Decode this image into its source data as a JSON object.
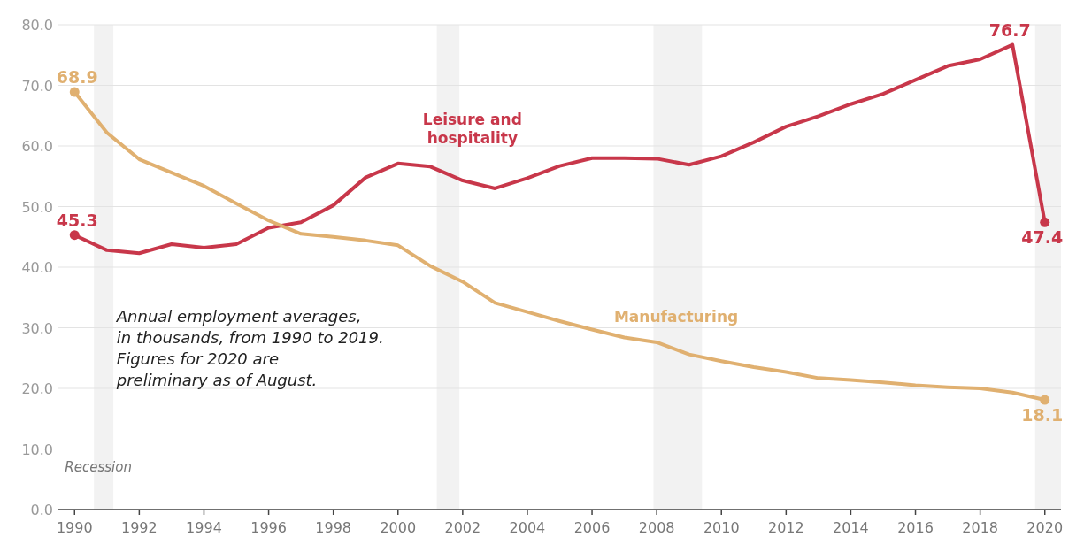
{
  "chart_data": {
    "type": "line",
    "x": [
      1990,
      1991,
      1992,
      1993,
      1994,
      1995,
      1996,
      1997,
      1998,
      1999,
      2000,
      2001,
      2002,
      2003,
      2004,
      2005,
      2006,
      2007,
      2008,
      2009,
      2010,
      2011,
      2012,
      2013,
      2014,
      2015,
      2016,
      2017,
      2018,
      2019,
      2020
    ],
    "series": [
      {
        "name": "Leisure and hospitality",
        "color": "#c8374a",
        "values": [
          45.3,
          42.8,
          42.3,
          43.8,
          43.2,
          43.8,
          46.5,
          47.4,
          50.2,
          54.8,
          57.1,
          56.6,
          54.3,
          53.0,
          54.7,
          56.7,
          58.0,
          58.0,
          57.9,
          56.9,
          58.3,
          60.6,
          63.2,
          64.9,
          66.9,
          68.6,
          70.9,
          73.2,
          74.3,
          76.7,
          47.4
        ],
        "value_labels": [
          "45.3",
          null,
          null,
          null,
          null,
          null,
          null,
          null,
          null,
          null,
          null,
          null,
          null,
          null,
          null,
          null,
          null,
          null,
          null,
          null,
          null,
          null,
          null,
          null,
          null,
          null,
          null,
          null,
          null,
          "76.7",
          "47.4"
        ]
      },
      {
        "name": "Manufacturing",
        "color": "#e0b070",
        "values": [
          68.9,
          62.2,
          57.8,
          55.6,
          53.4,
          50.5,
          47.7,
          45.5,
          45.0,
          44.4,
          43.6,
          40.2,
          37.6,
          34.1,
          32.6,
          31.1,
          29.7,
          28.4,
          27.6,
          25.6,
          24.5,
          23.5,
          22.7,
          21.7,
          21.4,
          21.0,
          20.5,
          20.2,
          20.0,
          19.3,
          18.1
        ],
        "value_labels": [
          "68.9",
          null,
          null,
          null,
          null,
          null,
          null,
          null,
          null,
          null,
          null,
          null,
          null,
          null,
          null,
          null,
          null,
          null,
          null,
          null,
          null,
          null,
          null,
          null,
          null,
          null,
          null,
          null,
          null,
          null,
          "18.1"
        ]
      }
    ],
    "xlim": [
      1989.5,
      2020.5
    ],
    "xticks": [
      1990,
      1992,
      1994,
      1996,
      1998,
      2000,
      2002,
      2004,
      2006,
      2008,
      2010,
      2012,
      2014,
      2016,
      2018,
      2020
    ],
    "ylim": [
      0,
      80
    ],
    "yticks": [
      {
        "value": 0,
        "label": "0.0"
      },
      {
        "value": 10,
        "label": "10.0"
      },
      {
        "value": 20,
        "label": "20.0"
      },
      {
        "value": 30,
        "label": "30.0"
      },
      {
        "value": 40,
        "label": "40.0"
      },
      {
        "value": 50,
        "label": "50.0"
      },
      {
        "value": 60,
        "label": "60.0"
      },
      {
        "value": 70,
        "label": "70.0"
      },
      {
        "value": 80,
        "label": "80.0"
      }
    ],
    "grid": "y",
    "bands": [
      {
        "axis": "x",
        "from": 1990.6,
        "to": 1991.2,
        "color": "#f2f2f2"
      },
      {
        "axis": "x",
        "from": 2001.2,
        "to": 2001.9,
        "color": "#f2f2f2"
      },
      {
        "axis": "x",
        "from": 2007.9,
        "to": 2009.4,
        "color": "#f2f2f2"
      },
      {
        "axis": "x",
        "from": 2019.7,
        "to": 2020.5,
        "color": "#f2f2f2"
      }
    ],
    "annotations": [
      "Annual employment averages,\nin thousands, from 1990 to 2019.\nFigures for 2020 are\npreliminary as of August.",
      "Recession"
    ]
  }
}
